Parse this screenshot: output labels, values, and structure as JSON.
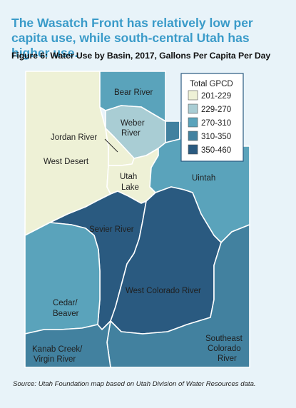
{
  "headline": "The Wasatch Front has relatively low per capita use, while south-central Utah has higher use.",
  "figure_title": "Figure 6: Water Use by Basin, 2017, Gallons Per Capita Per Day",
  "source": "Source: Utah Foundation map based on Utah Division of Water Resources data.",
  "colors": {
    "c201_229": "#eef1d6",
    "c229_270": "#a9cdd4",
    "c270_310": "#5aa3bb",
    "c310_350": "#42819f",
    "c350_460": "#2a5a80",
    "border": "#ffffff",
    "background": "#e8f3f9"
  },
  "legend": {
    "title": "Total GPCD",
    "items": [
      {
        "label": "201-229",
        "color": "#eef1d6"
      },
      {
        "label": "229-270",
        "color": "#a9cdd4"
      },
      {
        "label": "270-310",
        "color": "#5aa3bb"
      },
      {
        "label": "310-350",
        "color": "#42819f"
      },
      {
        "label": "350-460",
        "color": "#2a5a80"
      }
    ]
  },
  "basins": [
    {
      "name": "Bear River",
      "lines": [
        "Bear River"
      ],
      "class": "270-310"
    },
    {
      "name": "Weber River",
      "lines": [
        "Weber",
        "River"
      ],
      "class": "229-270"
    },
    {
      "name": "Jordan River",
      "lines": [
        "Jordan River"
      ],
      "class": "201-229"
    },
    {
      "name": "West Desert",
      "lines": [
        "West Desert"
      ],
      "class": "201-229"
    },
    {
      "name": "Utah Lake",
      "lines": [
        "Utah",
        "Lake"
      ],
      "class": "201-229"
    },
    {
      "name": "Uintah",
      "lines": [
        "Uintah"
      ],
      "class": "270-310"
    },
    {
      "name": "Sevier River",
      "lines": [
        "Sevier River"
      ],
      "class": "350-460"
    },
    {
      "name": "Cedar/Beaver",
      "lines": [
        "Cedar/",
        "Beaver"
      ],
      "class": "270-310"
    },
    {
      "name": "West Colorado River",
      "lines": [
        "West Colorado River"
      ],
      "class": "350-460"
    },
    {
      "name": "Kanab Creek/Virgin River",
      "lines": [
        "Kanab Creek/",
        "Virgin River"
      ],
      "class": "310-350"
    },
    {
      "name": "Southeast Colorado River",
      "lines": [
        "Southeast",
        "Colorado",
        "River"
      ],
      "class": "310-350"
    }
  ]
}
